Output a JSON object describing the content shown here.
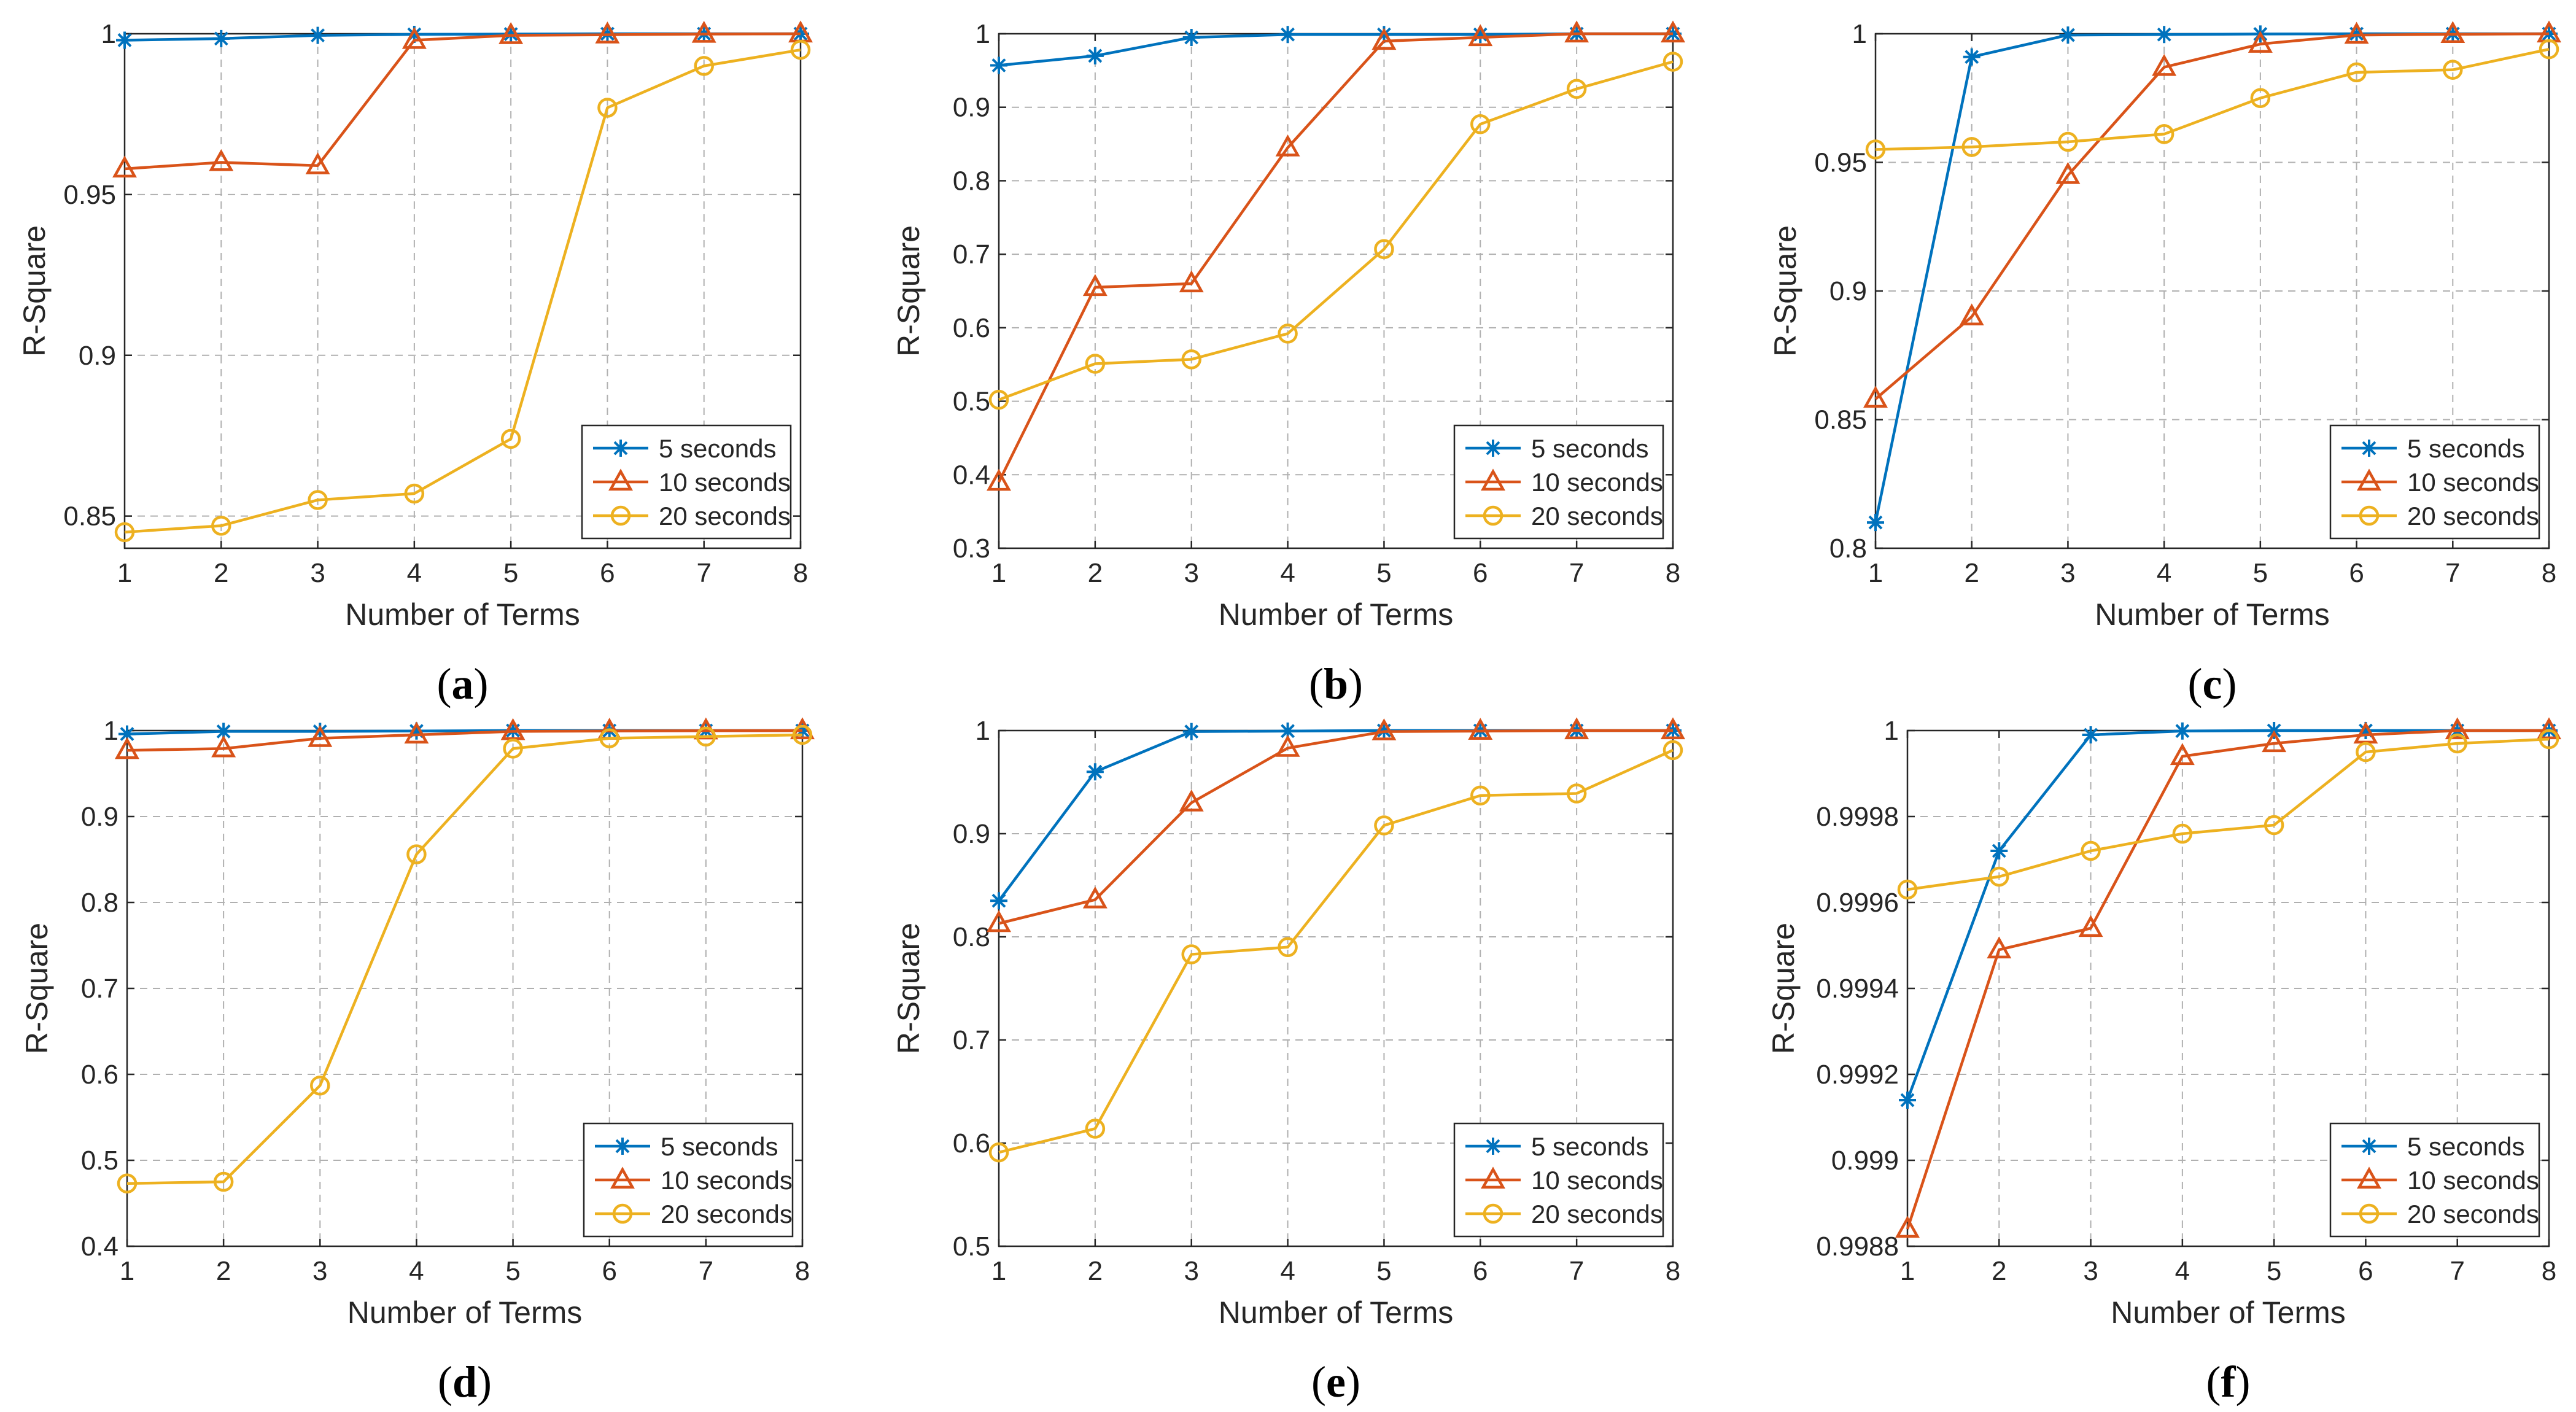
{
  "colors": {
    "s5": "#0072BD",
    "s10": "#D95319",
    "s20": "#EDB120",
    "grid": "#B0B0B0",
    "axis": "#262626"
  },
  "chart_data": [
    {
      "type": "line",
      "caption": "a",
      "xlabel": "Number of Terms",
      "ylabel": "R-Square",
      "xlim": [
        1,
        8
      ],
      "ylim": [
        0.84,
        1
      ],
      "x": [
        1,
        2,
        3,
        4,
        5,
        6,
        7,
        8
      ],
      "xticks": [
        "1",
        "2",
        "3",
        "4",
        "5",
        "6",
        "7",
        "8"
      ],
      "yticks": [
        {
          "v": 0.85,
          "label": "0.85"
        },
        {
          "v": 0.9,
          "label": "0.9"
        },
        {
          "v": 0.95,
          "label": "0.95"
        },
        {
          "v": 1,
          "label": "1"
        }
      ],
      "grid": true,
      "legend": "bottom-right",
      "series": [
        {
          "name": "5 seconds",
          "marker": "star",
          "values": [
            0.998,
            0.9985,
            0.9995,
            0.9998,
            0.9999,
            1.0,
            1.0,
            1.0
          ]
        },
        {
          "name": "10 seconds",
          "marker": "triangle",
          "values": [
            0.958,
            0.96,
            0.959,
            0.998,
            0.9995,
            0.9997,
            0.9999,
            1.0
          ]
        },
        {
          "name": "20 seconds",
          "marker": "circle",
          "values": [
            0.845,
            0.847,
            0.855,
            0.857,
            0.874,
            0.977,
            0.99,
            0.995
          ]
        }
      ]
    },
    {
      "type": "line",
      "caption": "b",
      "xlabel": "Number of Terms",
      "ylabel": "R-Square",
      "xlim": [
        1,
        8
      ],
      "ylim": [
        0.3,
        1
      ],
      "x": [
        1,
        2,
        3,
        4,
        5,
        6,
        7,
        8
      ],
      "xticks": [
        "1",
        "2",
        "3",
        "4",
        "5",
        "6",
        "7",
        "8"
      ],
      "yticks": [
        {
          "v": 0.3,
          "label": "0.3"
        },
        {
          "v": 0.4,
          "label": "0.4"
        },
        {
          "v": 0.5,
          "label": "0.5"
        },
        {
          "v": 0.6,
          "label": "0.6"
        },
        {
          "v": 0.7,
          "label": "0.7"
        },
        {
          "v": 0.8,
          "label": "0.8"
        },
        {
          "v": 0.9,
          "label": "0.9"
        },
        {
          "v": 1,
          "label": "1"
        }
      ],
      "grid": true,
      "legend": "bottom-right",
      "series": [
        {
          "name": "5 seconds",
          "marker": "star",
          "values": [
            0.957,
            0.97,
            0.995,
            0.999,
            0.999,
            0.999,
            1.0,
            1.0
          ]
        },
        {
          "name": "10 seconds",
          "marker": "triangle",
          "values": [
            0.39,
            0.655,
            0.66,
            0.845,
            0.99,
            0.995,
            1.0,
            1.0
          ]
        },
        {
          "name": "20 seconds",
          "marker": "circle",
          "values": [
            0.502,
            0.551,
            0.557,
            0.592,
            0.707,
            0.877,
            0.925,
            0.962
          ]
        }
      ]
    },
    {
      "type": "line",
      "caption": "c",
      "xlabel": "Number of Terms",
      "ylabel": "R-Square",
      "xlim": [
        1,
        8
      ],
      "ylim": [
        0.8,
        1
      ],
      "x": [
        1,
        2,
        3,
        4,
        5,
        6,
        7,
        8
      ],
      "xticks": [
        "1",
        "2",
        "3",
        "4",
        "5",
        "6",
        "7",
        "8"
      ],
      "yticks": [
        {
          "v": 0.8,
          "label": "0.8"
        },
        {
          "v": 0.85,
          "label": "0.85"
        },
        {
          "v": 0.9,
          "label": "0.9"
        },
        {
          "v": 0.95,
          "label": "0.95"
        },
        {
          "v": 1,
          "label": "1"
        }
      ],
      "grid": true,
      "legend": "bottom-right",
      "series": [
        {
          "name": "5 seconds",
          "marker": "star",
          "values": [
            0.81,
            0.991,
            0.9995,
            0.9997,
            0.9999,
            1.0,
            1.0,
            1.0
          ]
        },
        {
          "name": "10 seconds",
          "marker": "triangle",
          "values": [
            0.858,
            0.89,
            0.945,
            0.987,
            0.996,
            0.9995,
            0.9998,
            1.0
          ]
        },
        {
          "name": "20 seconds",
          "marker": "circle",
          "values": [
            0.955,
            0.956,
            0.958,
            0.961,
            0.975,
            0.985,
            0.986,
            0.994
          ]
        }
      ]
    },
    {
      "type": "line",
      "caption": "d",
      "xlabel": "Number of Terms",
      "ylabel": "R-Square",
      "xlim": [
        1,
        8
      ],
      "ylim": [
        0.4,
        1
      ],
      "x": [
        1,
        2,
        3,
        4,
        5,
        6,
        7,
        8
      ],
      "xticks": [
        "1",
        "2",
        "3",
        "4",
        "5",
        "6",
        "7",
        "8"
      ],
      "yticks": [
        {
          "v": 0.4,
          "label": "0.4"
        },
        {
          "v": 0.5,
          "label": "0.5"
        },
        {
          "v": 0.6,
          "label": "0.6"
        },
        {
          "v": 0.7,
          "label": "0.7"
        },
        {
          "v": 0.8,
          "label": "0.8"
        },
        {
          "v": 0.9,
          "label": "0.9"
        },
        {
          "v": 1,
          "label": "1"
        }
      ],
      "grid": true,
      "legend": "bottom-right",
      "series": [
        {
          "name": "5 seconds",
          "marker": "star",
          "values": [
            0.996,
            0.999,
            0.999,
            0.9995,
            1.0,
            1.0,
            1.0,
            1.0
          ]
        },
        {
          "name": "10 seconds",
          "marker": "triangle",
          "values": [
            0.977,
            0.979,
            0.991,
            0.995,
            0.999,
            0.9995,
            0.9998,
            1.0
          ]
        },
        {
          "name": "20 seconds",
          "marker": "circle",
          "values": [
            0.473,
            0.475,
            0.587,
            0.856,
            0.979,
            0.991,
            0.993,
            0.995
          ]
        }
      ]
    },
    {
      "type": "line",
      "caption": "e",
      "xlabel": "Number of Terms",
      "ylabel": "R-Square",
      "xlim": [
        1,
        8
      ],
      "ylim": [
        0.5,
        1
      ],
      "x": [
        1,
        2,
        3,
        4,
        5,
        6,
        7,
        8
      ],
      "xticks": [
        "1",
        "2",
        "3",
        "4",
        "5",
        "6",
        "7",
        "8"
      ],
      "yticks": [
        {
          "v": 0.5,
          "label": "0.5"
        },
        {
          "v": 0.6,
          "label": "0.6"
        },
        {
          "v": 0.7,
          "label": "0.7"
        },
        {
          "v": 0.8,
          "label": "0.8"
        },
        {
          "v": 0.9,
          "label": "0.9"
        },
        {
          "v": 1,
          "label": "1"
        }
      ],
      "grid": true,
      "legend": "bottom-right",
      "series": [
        {
          "name": "5 seconds",
          "marker": "star",
          "values": [
            0.835,
            0.96,
            0.999,
            0.9995,
            1.0,
            1.0,
            1.0,
            1.0
          ]
        },
        {
          "name": "10 seconds",
          "marker": "triangle",
          "values": [
            0.813,
            0.836,
            0.93,
            0.983,
            0.999,
            0.9995,
            1.0,
            1.0
          ]
        },
        {
          "name": "20 seconds",
          "marker": "circle",
          "values": [
            0.591,
            0.614,
            0.783,
            0.79,
            0.908,
            0.937,
            0.939,
            0.981
          ]
        }
      ]
    },
    {
      "type": "line",
      "caption": "f",
      "xlabel": "Number of Terms",
      "ylabel": "R-Square",
      "xlim": [
        1,
        8
      ],
      "ylim": [
        0.9988,
        1
      ],
      "x": [
        1,
        2,
        3,
        4,
        5,
        6,
        7,
        8
      ],
      "xticks": [
        "1",
        "2",
        "3",
        "4",
        "5",
        "6",
        "7",
        "8"
      ],
      "yticks": [
        {
          "v": 0.9988,
          "label": "0.9988"
        },
        {
          "v": 0.999,
          "label": "0.999"
        },
        {
          "v": 0.9992,
          "label": "0.9992"
        },
        {
          "v": 0.9994,
          "label": "0.9994"
        },
        {
          "v": 0.9996,
          "label": "0.9996"
        },
        {
          "v": 0.9998,
          "label": "0.9998"
        },
        {
          "v": 1,
          "label": "1"
        }
      ],
      "grid": true,
      "legend": "bottom-right",
      "series": [
        {
          "name": "5 seconds",
          "marker": "star",
          "values": [
            0.99914,
            0.99972,
            0.99999,
            0.999999,
            1.0,
            1.0,
            1.0,
            1.0
          ]
        },
        {
          "name": "10 seconds",
          "marker": "triangle",
          "values": [
            0.99884,
            0.99949,
            0.99954,
            0.99994,
            0.99997,
            0.99999,
            1.0,
            1.0
          ]
        },
        {
          "name": "20 seconds",
          "marker": "circle",
          "values": [
            0.99963,
            0.99966,
            0.99972,
            0.99976,
            0.99978,
            0.99995,
            0.99997,
            0.99998
          ]
        }
      ]
    }
  ]
}
